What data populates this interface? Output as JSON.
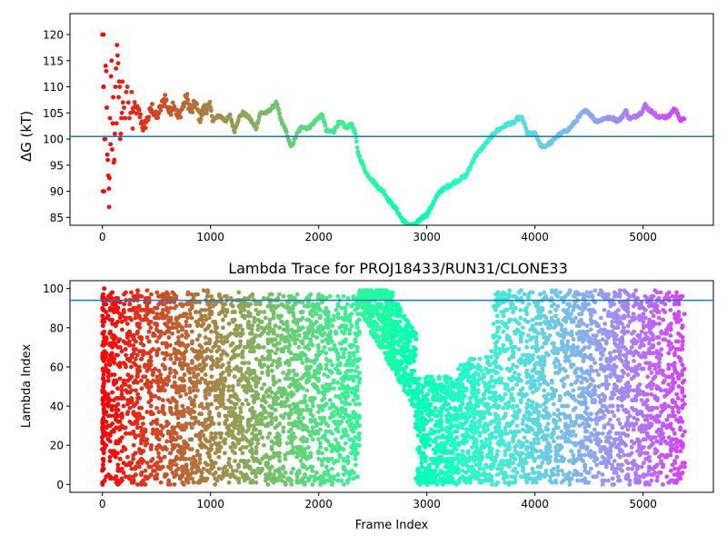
{
  "chart_data": [
    {
      "type": "scatter",
      "title": "",
      "xlabel": "",
      "ylabel": "ΔG (kT)",
      "xlim": [
        -300,
        5650
      ],
      "ylim": [
        83.5,
        124
      ],
      "xticks": [
        0,
        1000,
        2000,
        3000,
        4000,
        5000
      ],
      "xtick_labels": [
        "0",
        "1000",
        "2000",
        "3000",
        "4000",
        "5000"
      ],
      "yticks": [
        85,
        90,
        95,
        100,
        105,
        110,
        115,
        120
      ],
      "ytick_labels": [
        "85",
        "90",
        "95",
        "100",
        "105",
        "110",
        "115",
        "120"
      ],
      "hline": 100.5,
      "colormap": "rainbow (red at start of trajectory → violet at end)",
      "marker_color_by": "frame index",
      "x_max_frame": 5380,
      "series": [
        {
          "trace": [
            [
              0,
              120
            ],
            [
              10,
              90
            ],
            [
              20,
              110
            ],
            [
              30,
              100
            ],
            [
              40,
              114
            ],
            [
              50,
              96
            ],
            [
              60,
              90.5
            ],
            [
              70,
              104
            ],
            [
              80,
              112
            ],
            [
              90,
              98
            ],
            [
              100,
              108
            ],
            [
              110,
              96
            ],
            [
              120,
              110
            ],
            [
              130,
              103
            ],
            [
              140,
              116
            ],
            [
              150,
              108
            ],
            [
              160,
              111
            ],
            [
              170,
              100
            ],
            [
              180,
              105
            ],
            [
              200,
              106
            ],
            [
              230,
              108
            ],
            [
              260,
              105
            ],
            [
              300,
              106
            ],
            [
              340,
              105
            ],
            [
              380,
              102
            ],
            [
              420,
              104
            ],
            [
              460,
              106
            ],
            [
              500,
              104
            ],
            [
              540,
              106
            ],
            [
              580,
              108
            ],
            [
              620,
              105
            ],
            [
              660,
              107
            ],
            [
              700,
              104
            ],
            [
              740,
              106
            ],
            [
              780,
              108
            ],
            [
              820,
              105
            ],
            [
              860,
              107
            ],
            [
              900,
              104
            ],
            [
              950,
              106
            ],
            [
              1000,
              106
            ],
            [
              1020,
              103.5
            ],
            [
              1080,
              104.5
            ],
            [
              1140,
              103.5
            ],
            [
              1180,
              104.5
            ],
            [
              1220,
              101.5
            ],
            [
              1260,
              104
            ],
            [
              1300,
              105
            ],
            [
              1360,
              104
            ],
            [
              1420,
              102
            ],
            [
              1460,
              105
            ],
            [
              1520,
              105
            ],
            [
              1570,
              106
            ],
            [
              1610,
              107
            ],
            [
              1650,
              103.5
            ],
            [
              1690,
              102
            ],
            [
              1720,
              100
            ],
            [
              1740,
              98.5
            ],
            [
              1770,
              99.5
            ],
            [
              1800,
              101
            ],
            [
              1850,
              102.5
            ],
            [
              1900,
              102
            ],
            [
              1950,
              103
            ],
            [
              1990,
              104
            ],
            [
              2030,
              104.5
            ],
            [
              2050,
              103.5
            ],
            [
              2070,
              101.5
            ],
            [
              2100,
              101.5
            ],
            [
              2140,
              101.5
            ],
            [
              2180,
              103
            ],
            [
              2220,
              103
            ],
            [
              2260,
              102
            ],
            [
              2300,
              103
            ],
            [
              2340,
              101
            ],
            [
              2360,
              97.5
            ],
            [
              2400,
              95.5
            ],
            [
              2440,
              93.5
            ],
            [
              2480,
              92.5
            ],
            [
              2520,
              91.5
            ],
            [
              2560,
              90.5
            ],
            [
              2600,
              90
            ],
            [
              2640,
              88.5
            ],
            [
              2680,
              87.5
            ],
            [
              2720,
              86.5
            ],
            [
              2760,
              85
            ],
            [
              2800,
              84
            ],
            [
              2830,
              83.5
            ],
            [
              2880,
              83.5
            ],
            [
              2900,
              83.6
            ],
            [
              2930,
              84.5
            ],
            [
              2960,
              85
            ],
            [
              3000,
              85.5
            ],
            [
              3040,
              87
            ],
            [
              3080,
              88.5
            ],
            [
              3120,
              90
            ],
            [
              3160,
              90.5
            ],
            [
              3200,
              91
            ],
            [
              3240,
              91.5
            ],
            [
              3280,
              92
            ],
            [
              3320,
              92.5
            ],
            [
              3360,
              93
            ],
            [
              3400,
              94.5
            ],
            [
              3440,
              96.5
            ],
            [
              3480,
              97.5
            ],
            [
              3520,
              98.5
            ],
            [
              3560,
              99.5
            ],
            [
              3600,
              100.5
            ],
            [
              3640,
              101.5
            ],
            [
              3680,
              102
            ],
            [
              3720,
              102.5
            ],
            [
              3760,
              103
            ],
            [
              3800,
              103
            ],
            [
              3840,
              104
            ],
            [
              3880,
              104
            ],
            [
              3900,
              103
            ],
            [
              3930,
              101
            ],
            [
              3960,
              101
            ],
            [
              4000,
              101
            ],
            [
              4020,
              100.5
            ],
            [
              4040,
              99
            ],
            [
              4080,
              98.5
            ],
            [
              4120,
              99
            ],
            [
              4160,
              99.5
            ],
            [
              4200,
              100.5
            ],
            [
              4240,
              101
            ],
            [
              4280,
              101.5
            ],
            [
              4320,
              102
            ],
            [
              4360,
              103
            ],
            [
              4400,
              104
            ],
            [
              4440,
              105
            ],
            [
              4480,
              105.5
            ],
            [
              4520,
              104.5
            ],
            [
              4560,
              103.5
            ],
            [
              4600,
              103.5
            ],
            [
              4640,
              104
            ],
            [
              4680,
              104
            ],
            [
              4720,
              104
            ],
            [
              4760,
              103.5
            ],
            [
              4800,
              104
            ],
            [
              4840,
              105.5
            ],
            [
              4870,
              104
            ],
            [
              4900,
              104
            ],
            [
              4940,
              104.5
            ],
            [
              4980,
              105
            ],
            [
              5020,
              106.5
            ],
            [
              5060,
              105.5
            ],
            [
              5100,
              105
            ],
            [
              5140,
              104
            ],
            [
              5180,
              104.5
            ],
            [
              5220,
              104
            ],
            [
              5260,
              105
            ],
            [
              5300,
              106
            ],
            [
              5330,
              104
            ],
            [
              5360,
              103.5
            ],
            [
              5380,
              104
            ]
          ]
        }
      ]
    },
    {
      "type": "scatter",
      "title": "Lambda Trace for PROJ18433/RUN31/CLONE33",
      "xlabel": "Frame Index",
      "ylabel": "Lambda Index",
      "xlim": [
        -300,
        5650
      ],
      "ylim": [
        -4,
        104
      ],
      "xticks": [
        0,
        1000,
        2000,
        3000,
        4000,
        5000
      ],
      "xtick_labels": [
        "0",
        "1000",
        "2000",
        "3000",
        "4000",
        "5000"
      ],
      "yticks": [
        0,
        20,
        40,
        60,
        80,
        100
      ],
      "ytick_labels": [
        "0",
        "20",
        "40",
        "60",
        "80",
        "100"
      ],
      "hline": 94,
      "colormap": "rainbow (red at start of trajectory → violet at end)",
      "marker_color_by": "frame index",
      "x_max_frame": 5380,
      "series": [
        {
          "segments": [
            [
              0,
              60,
              0,
              100
            ],
            [
              60,
              300,
              0,
              99
            ],
            [
              300,
              700,
              0,
              99
            ],
            [
              700,
              1000,
              0,
              99
            ],
            [
              1000,
              1300,
              0,
              98
            ],
            [
              1300,
              1650,
              0,
              98
            ],
            [
              1650,
              2000,
              0,
              97
            ],
            [
              2000,
              2380,
              0,
              97
            ],
            [
              2380,
              2550,
              60,
              99
            ],
            [
              2550,
              2900,
              45,
              99
            ],
            [
              2900,
              3300,
              0,
              55
            ],
            [
              3300,
              3600,
              0,
              65
            ],
            [
              3600,
              3950,
              0,
              99
            ],
            [
              3950,
              4300,
              0,
              99
            ],
            [
              4300,
              4650,
              0,
              99
            ],
            [
              4650,
              5000,
              0,
              99
            ],
            [
              5000,
              5250,
              0,
              99
            ],
            [
              5250,
              5380,
              0,
              99
            ]
          ]
        }
      ]
    }
  ]
}
